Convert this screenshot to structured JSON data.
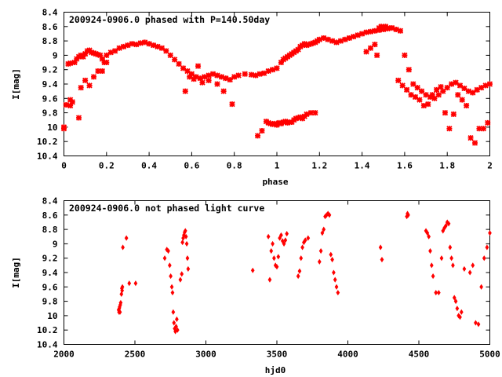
{
  "chart_data": [
    {
      "type": "scatter",
      "title": "200924-0906.0 phased with P=140.50day",
      "xlabel": "phase",
      "ylabel": "I[mag]",
      "xlim": [
        0,
        2
      ],
      "ylim": [
        10.4,
        8.4
      ],
      "y_reversed": true,
      "xticks": [
        "0",
        "0.2",
        "0.4",
        "0.6",
        "0.8",
        "1",
        "1.2",
        "1.4",
        "1.6",
        "1.8",
        "2"
      ],
      "yticks": [
        "8.4",
        "8.6",
        "8.8",
        "9",
        "9.2",
        "9.4",
        "9.6",
        "9.8",
        "10",
        "10.2",
        "10.4"
      ],
      "marker": "cross",
      "color": "#ff0000",
      "grid": false,
      "legend": "none",
      "series": [
        {
          "x": [
            0.0,
            0.01,
            0.02,
            0.03,
            0.03,
            0.04,
            0.05,
            0.06,
            0.07,
            0.08,
            0.09,
            0.1,
            0.11,
            0.12,
            0.13,
            0.14,
            0.15,
            0.16,
            0.17,
            0.18,
            0.19,
            0.2,
            0.22,
            0.24,
            0.26,
            0.28,
            0.3,
            0.32,
            0.34,
            0.36,
            0.38,
            0.4,
            0.42,
            0.44,
            0.46,
            0.48,
            0.5,
            0.52,
            0.54,
            0.56,
            0.58,
            0.6,
            0.62,
            0.64,
            0.66,
            0.68,
            0.7,
            0.72,
            0.74,
            0.76,
            0.78,
            0.8,
            0.82,
            0.85,
            0.88,
            0.9,
            0.92,
            0.94,
            0.96,
            0.98,
            1.0,
            1.02,
            1.03,
            1.04,
            1.05,
            1.06,
            1.07,
            1.08,
            1.09,
            1.1,
            1.11,
            1.12,
            1.13,
            1.14,
            1.15,
            1.16,
            1.17,
            1.18,
            1.19,
            1.2,
            1.22,
            1.24,
            1.26,
            1.28,
            1.3,
            1.32,
            1.34,
            1.36,
            1.38,
            1.4,
            1.42,
            1.44,
            1.46,
            1.48,
            1.5,
            1.52,
            1.54,
            1.56,
            1.58,
            1.6,
            1.62,
            1.64,
            1.66,
            1.68,
            1.7,
            1.72,
            1.74,
            1.76,
            1.78,
            1.8,
            1.82,
            1.84,
            1.86,
            1.88,
            1.9,
            1.92,
            1.94,
            1.96,
            1.98,
            2.0,
            0.0,
            0.03,
            0.07,
            0.08,
            0.1,
            0.12,
            0.14,
            0.16,
            0.18,
            0.2,
            0.57,
            0.59,
            0.61,
            0.63,
            0.65,
            0.68,
            0.72,
            0.75,
            0.79,
            0.91,
            0.93,
            0.95,
            0.96,
            0.97,
            0.98,
            0.99,
            1.0,
            1.01,
            1.02,
            1.03,
            1.04,
            1.05,
            1.06,
            1.07,
            1.08,
            1.09,
            1.1,
            1.11,
            1.12,
            1.13,
            1.14,
            1.16,
            1.18,
            1.42,
            1.44,
            1.46,
            1.47,
            1.48,
            1.49,
            1.5,
            1.51,
            1.52,
            1.54,
            1.57,
            1.59,
            1.61,
            1.63,
            1.65,
            1.67,
            1.69,
            1.71,
            1.73,
            1.75,
            1.77,
            1.79,
            1.81,
            1.83,
            1.85,
            1.87,
            1.89,
            1.91,
            1.93,
            1.95,
            1.97,
            1.99
          ],
          "y": [
            10.0,
            9.69,
            9.12,
            9.7,
            9.11,
            9.65,
            9.1,
            9.05,
            9.02,
            9.0,
            9.02,
            8.98,
            8.94,
            8.93,
            8.96,
            8.97,
            8.98,
            8.99,
            9.0,
            9.05,
            9.1,
            9.0,
            8.96,
            8.94,
            8.9,
            8.88,
            8.86,
            8.84,
            8.85,
            8.83,
            8.82,
            8.84,
            8.86,
            8.88,
            8.9,
            8.94,
            9.0,
            9.06,
            9.12,
            9.18,
            9.22,
            9.26,
            9.3,
            9.32,
            9.3,
            9.28,
            9.26,
            9.28,
            9.3,
            9.32,
            9.34,
            9.3,
            9.28,
            9.26,
            9.27,
            9.28,
            9.26,
            9.25,
            9.22,
            9.2,
            9.18,
            9.1,
            9.06,
            9.04,
            9.02,
            9.0,
            8.98,
            8.96,
            8.94,
            8.92,
            8.88,
            8.86,
            8.84,
            8.86,
            8.85,
            8.84,
            8.83,
            8.82,
            8.8,
            8.78,
            8.76,
            8.78,
            8.8,
            8.82,
            8.8,
            8.78,
            8.76,
            8.74,
            8.72,
            8.7,
            8.68,
            8.67,
            8.66,
            8.65,
            8.64,
            8.63,
            8.62,
            8.64,
            8.66,
            9.0,
            9.2,
            9.4,
            9.45,
            9.5,
            9.55,
            9.58,
            9.6,
            9.55,
            9.5,
            9.45,
            9.4,
            9.38,
            9.42,
            9.46,
            9.5,
            9.52,
            9.48,
            9.45,
            9.42,
            9.4,
            10.02,
            9.62,
            9.87,
            9.45,
            9.35,
            9.42,
            9.3,
            9.22,
            9.22,
            9.1,
            9.5,
            9.3,
            9.33,
            9.15,
            9.38,
            9.35,
            9.4,
            9.5,
            9.68,
            10.12,
            10.05,
            9.92,
            9.94,
            9.95,
            9.96,
            9.95,
            9.97,
            9.94,
            9.95,
            9.93,
            9.92,
            9.94,
            9.93,
            9.93,
            9.9,
            9.88,
            9.87,
            9.86,
            9.88,
            9.85,
            9.82,
            9.8,
            9.8,
            8.95,
            8.9,
            8.85,
            9.0,
            8.62,
            8.6,
            8.61,
            8.6,
            8.62,
            8.62,
            9.35,
            9.42,
            9.48,
            9.55,
            9.58,
            9.62,
            9.7,
            9.68,
            9.55,
            9.48,
            9.44,
            9.8,
            10.02,
            9.82,
            9.55,
            9.62,
            9.7,
            10.15,
            10.22,
            10.02,
            10.02,
            9.94
          ]
        }
      ]
    },
    {
      "type": "scatter",
      "title": "200924-0906.0 not phased light curve",
      "xlabel": "hjd0",
      "ylabel": "I[mag]",
      "xlim": [
        2000,
        5000
      ],
      "ylim": [
        10.4,
        8.4
      ],
      "y_reversed": true,
      "xticks": [
        "2000",
        "2500",
        "3000",
        "3500",
        "4000",
        "4500",
        "5000"
      ],
      "yticks": [
        "8.4",
        "8.6",
        "8.8",
        "9",
        "9.2",
        "9.4",
        "9.6",
        "9.8",
        "10",
        "10.2",
        "10.4"
      ],
      "marker": "diamond",
      "color": "#ff0000",
      "grid": false,
      "legend": "none",
      "series": [
        {
          "x": [
            2385,
            2388,
            2390,
            2392,
            2395,
            2397,
            2400,
            2405,
            2408,
            2410,
            2412,
            2415,
            2440,
            2460,
            2505,
            2710,
            2725,
            2735,
            2745,
            2752,
            2760,
            2765,
            2770,
            2775,
            2780,
            2785,
            2790,
            2795,
            2800,
            2820,
            2830,
            2835,
            2840,
            2845,
            2850,
            2855,
            2860,
            2865,
            2870,
            2875,
            3330,
            3440,
            3450,
            3460,
            3470,
            3480,
            3490,
            3500,
            3510,
            3520,
            3530,
            3540,
            3550,
            3560,
            3570,
            3650,
            3660,
            3670,
            3680,
            3690,
            3700,
            3720,
            3800,
            3810,
            3820,
            3830,
            3840,
            3850,
            3860,
            3870,
            3880,
            3890,
            3900,
            3910,
            3920,
            3930,
            4230,
            4240,
            4415,
            4420,
            4425,
            4550,
            4560,
            4570,
            4580,
            4590,
            4600,
            4620,
            4640,
            4660,
            4670,
            4680,
            4690,
            4700,
            4710,
            4720,
            4730,
            4740,
            4750,
            4760,
            4770,
            4780,
            4790,
            4800,
            4820,
            4860,
            4880,
            4900,
            4920,
            4940,
            4960,
            4980,
            5000
          ],
          "y": [
            9.92,
            9.95,
            9.9,
            9.88,
            9.95,
            9.85,
            9.82,
            9.7,
            9.62,
            9.65,
            9.6,
            9.05,
            8.92,
            9.55,
            9.55,
            9.2,
            9.08,
            9.1,
            9.3,
            9.45,
            9.6,
            9.68,
            9.95,
            10.1,
            10.18,
            10.22,
            10.15,
            10.05,
            10.2,
            9.5,
            9.42,
            8.98,
            8.92,
            8.88,
            8.84,
            8.82,
            8.9,
            9.0,
            9.2,
            9.35,
            9.37,
            8.9,
            9.5,
            9.1,
            9.0,
            9.2,
            9.3,
            9.32,
            9.18,
            8.92,
            8.88,
            8.96,
            9.0,
            8.95,
            8.86,
            9.45,
            9.38,
            9.2,
            9.05,
            8.98,
            8.95,
            8.92,
            9.25,
            9.1,
            8.85,
            8.8,
            8.62,
            8.6,
            8.58,
            8.6,
            9.15,
            9.22,
            9.4,
            9.5,
            9.6,
            9.68,
            9.05,
            9.22,
            8.62,
            8.58,
            8.6,
            8.82,
            8.85,
            8.9,
            9.1,
            9.3,
            9.45,
            9.68,
            9.68,
            9.2,
            8.82,
            8.78,
            8.75,
            8.7,
            8.72,
            9.05,
            9.2,
            9.3,
            9.75,
            9.8,
            9.9,
            10.0,
            10.02,
            9.95,
            9.35,
            9.4,
            9.3,
            10.1,
            10.12,
            9.6,
            9.2,
            9.05,
            8.85
          ]
        }
      ]
    }
  ]
}
